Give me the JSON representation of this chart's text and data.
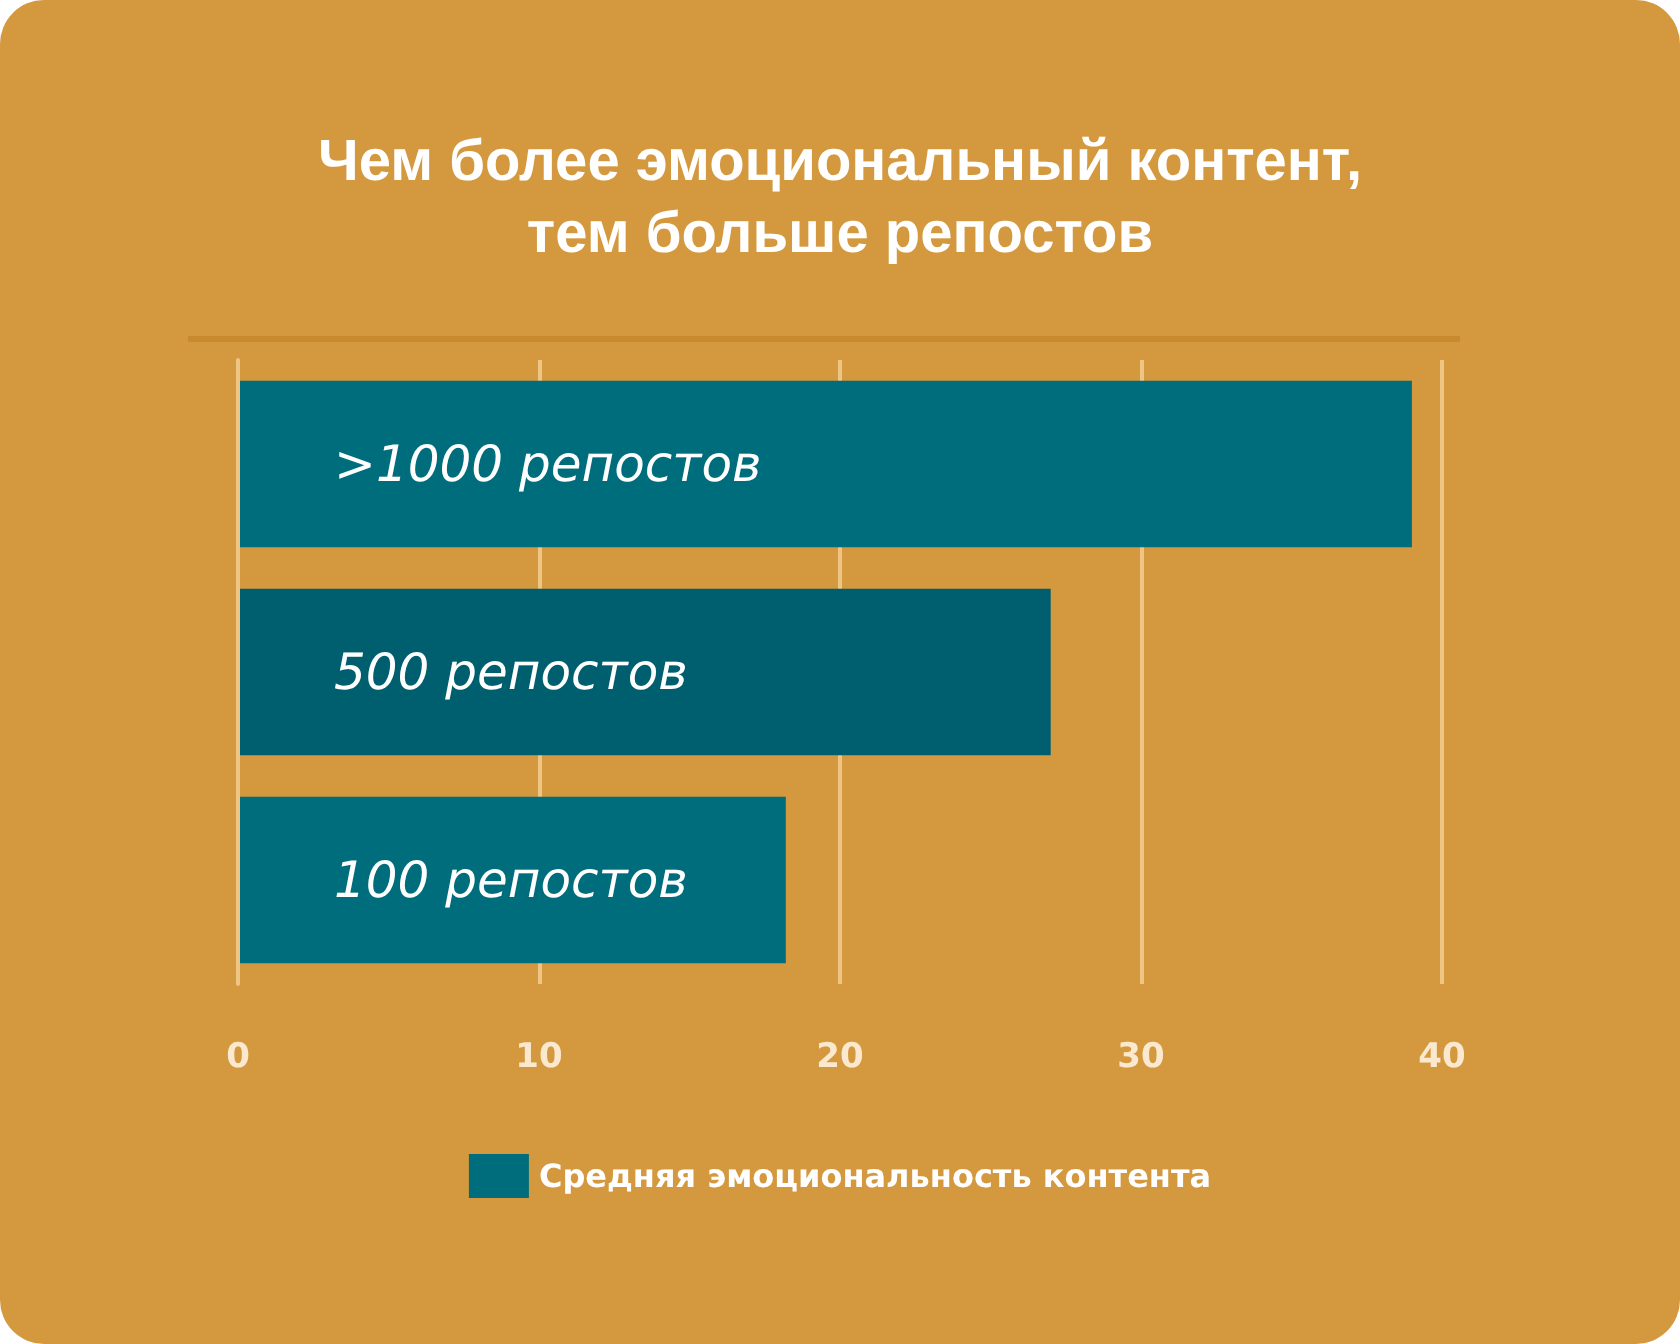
{
  "chart_data": {
    "type": "bar",
    "orientation": "horizontal",
    "title": "Чем более эмоциональный контент,\nтем больше репостов",
    "categories": [
      ">1000 репостов",
      "500 репостов",
      "100 репостов"
    ],
    "series": [
      {
        "name": "Средняя эмоциональность контента",
        "color": "#006d7c",
        "colors": [
          "#006d7c",
          "#005f6e",
          "#006d7c"
        ],
        "values": [
          39,
          27,
          18.2
        ]
      }
    ],
    "xlim": [
      0,
      40
    ],
    "xticks": [
      0,
      10,
      20,
      30,
      40
    ],
    "grid": "x",
    "legend": "bottom"
  }
}
